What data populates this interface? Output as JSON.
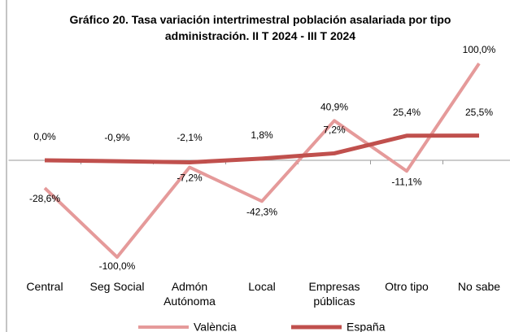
{
  "chart_data": {
    "type": "line",
    "title": "Gráfico 20. Tasa variación intertrimestral  población asalariada por tipo administración. II T 2024 - III T 2024",
    "categories": [
      "Central",
      "Seg Social",
      "Admón Autónoma",
      "Local",
      "Empresas públicas",
      "Otro tipo",
      "No sabe"
    ],
    "series": [
      {
        "name": "València",
        "color": "#e59a9a",
        "values": [
          -28.6,
          -100,
          -7.2,
          -42.3,
          40.9,
          -11.1,
          100
        ],
        "value_labels": [
          "-28,6%",
          "-100,0%",
          "-7,2%",
          "-42,3%",
          "40,9%",
          "-11,1%",
          "100,0%"
        ]
      },
      {
        "name": "España",
        "color": "#c0504d",
        "values": [
          0.0,
          -0.9,
          -2.1,
          1.8,
          7.2,
          25.4,
          25.5
        ],
        "value_labels": [
          "0,0%",
          "-0,9%",
          "-2,1%",
          "1,8%",
          "7,2%",
          "25,4%",
          "25,5%"
        ]
      }
    ],
    "ylim": [
      -100,
      100
    ],
    "legend": "bottom"
  }
}
